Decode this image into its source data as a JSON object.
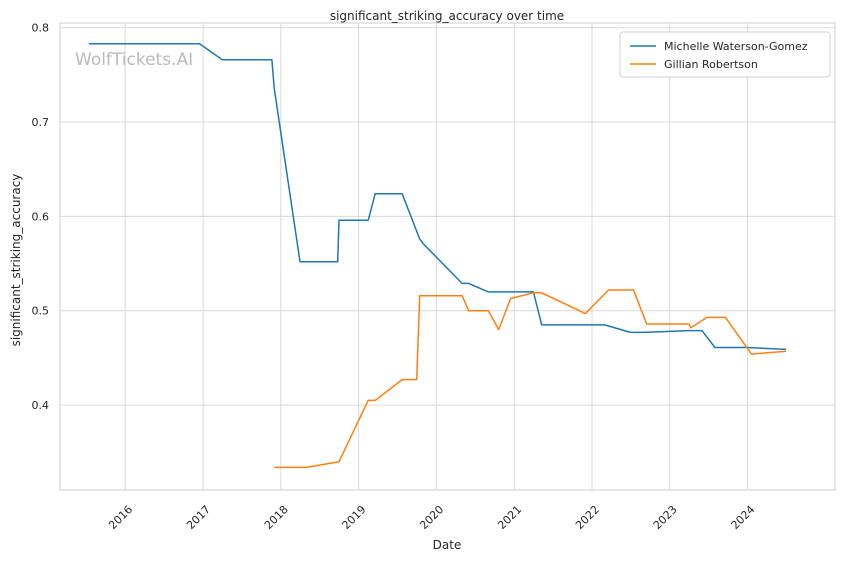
{
  "chart_data": {
    "type": "line",
    "title": "significant_striking_accuracy over time",
    "xlabel": "Date",
    "ylabel": "significant_striking_accuracy",
    "watermark": "WolfTickets.AI",
    "x_range": [
      "2015-03-01",
      "2025-02-15"
    ],
    "ylim": [
      0.31,
      0.805
    ],
    "x_ticks": [
      "2016-01-01",
      "2017-01-01",
      "2018-01-01",
      "2019-01-01",
      "2020-01-01",
      "2021-01-01",
      "2022-01-01",
      "2023-01-01",
      "2024-01-01"
    ],
    "x_tick_labels": [
      "2016",
      "2017",
      "2018",
      "2019",
      "2020",
      "2021",
      "2022",
      "2023",
      "2024"
    ],
    "y_ticks": [
      0.4,
      0.5,
      0.6,
      0.7,
      0.8
    ],
    "y_tick_labels": [
      "0.4",
      "0.5",
      "0.6",
      "0.7",
      "0.8"
    ],
    "grid": true,
    "legend_position": "top-right",
    "series": [
      {
        "name": "Michelle Waterson-Gomez",
        "color": "#1f77b4",
        "points": [
          [
            "2015-07-15",
            0.783
          ],
          [
            "2016-12-15",
            0.783
          ],
          [
            "2017-04-01",
            0.766
          ],
          [
            "2017-11-20",
            0.766
          ],
          [
            "2017-12-01",
            0.736
          ],
          [
            "2018-04-01",
            0.552
          ],
          [
            "2018-09-25",
            0.552
          ],
          [
            "2018-10-01",
            0.596
          ],
          [
            "2019-02-15",
            0.596
          ],
          [
            "2019-03-20",
            0.624
          ],
          [
            "2019-07-25",
            0.624
          ],
          [
            "2019-10-15",
            0.576
          ],
          [
            "2019-11-01",
            0.571
          ],
          [
            "2020-05-01",
            0.529
          ],
          [
            "2020-06-01",
            0.529
          ],
          [
            "2020-09-01",
            0.52
          ],
          [
            "2021-04-01",
            0.52
          ],
          [
            "2021-05-10",
            0.485
          ],
          [
            "2022-03-01",
            0.485
          ],
          [
            "2022-07-01",
            0.477
          ],
          [
            "2022-09-01",
            0.477
          ],
          [
            "2023-04-01",
            0.479
          ],
          [
            "2023-06-01",
            0.479
          ],
          [
            "2023-08-01",
            0.461
          ],
          [
            "2024-01-01",
            0.461
          ],
          [
            "2024-07-01",
            0.459
          ]
        ]
      },
      {
        "name": "Gillian Robertson",
        "color": "#ff7f0e",
        "points": [
          [
            "2017-12-01",
            0.334
          ],
          [
            "2018-05-01",
            0.334
          ],
          [
            "2018-10-01",
            0.34
          ],
          [
            "2019-02-15",
            0.405
          ],
          [
            "2019-03-20",
            0.405
          ],
          [
            "2019-07-25",
            0.427
          ],
          [
            "2019-10-01",
            0.427
          ],
          [
            "2019-10-15",
            0.516
          ],
          [
            "2020-05-01",
            0.516
          ],
          [
            "2020-06-01",
            0.5
          ],
          [
            "2020-09-01",
            0.5
          ],
          [
            "2020-10-20",
            0.48
          ],
          [
            "2020-12-15",
            0.513
          ],
          [
            "2021-04-01",
            0.519
          ],
          [
            "2021-05-10",
            0.519
          ],
          [
            "2021-12-01",
            0.497
          ],
          [
            "2022-03-20",
            0.522
          ],
          [
            "2022-07-15",
            0.522
          ],
          [
            "2022-09-15",
            0.486
          ],
          [
            "2023-04-01",
            0.486
          ],
          [
            "2023-04-10",
            0.482
          ],
          [
            "2023-06-25",
            0.493
          ],
          [
            "2023-09-20",
            0.493
          ],
          [
            "2024-01-20",
            0.454
          ],
          [
            "2024-07-01",
            0.457
          ]
        ]
      }
    ]
  }
}
